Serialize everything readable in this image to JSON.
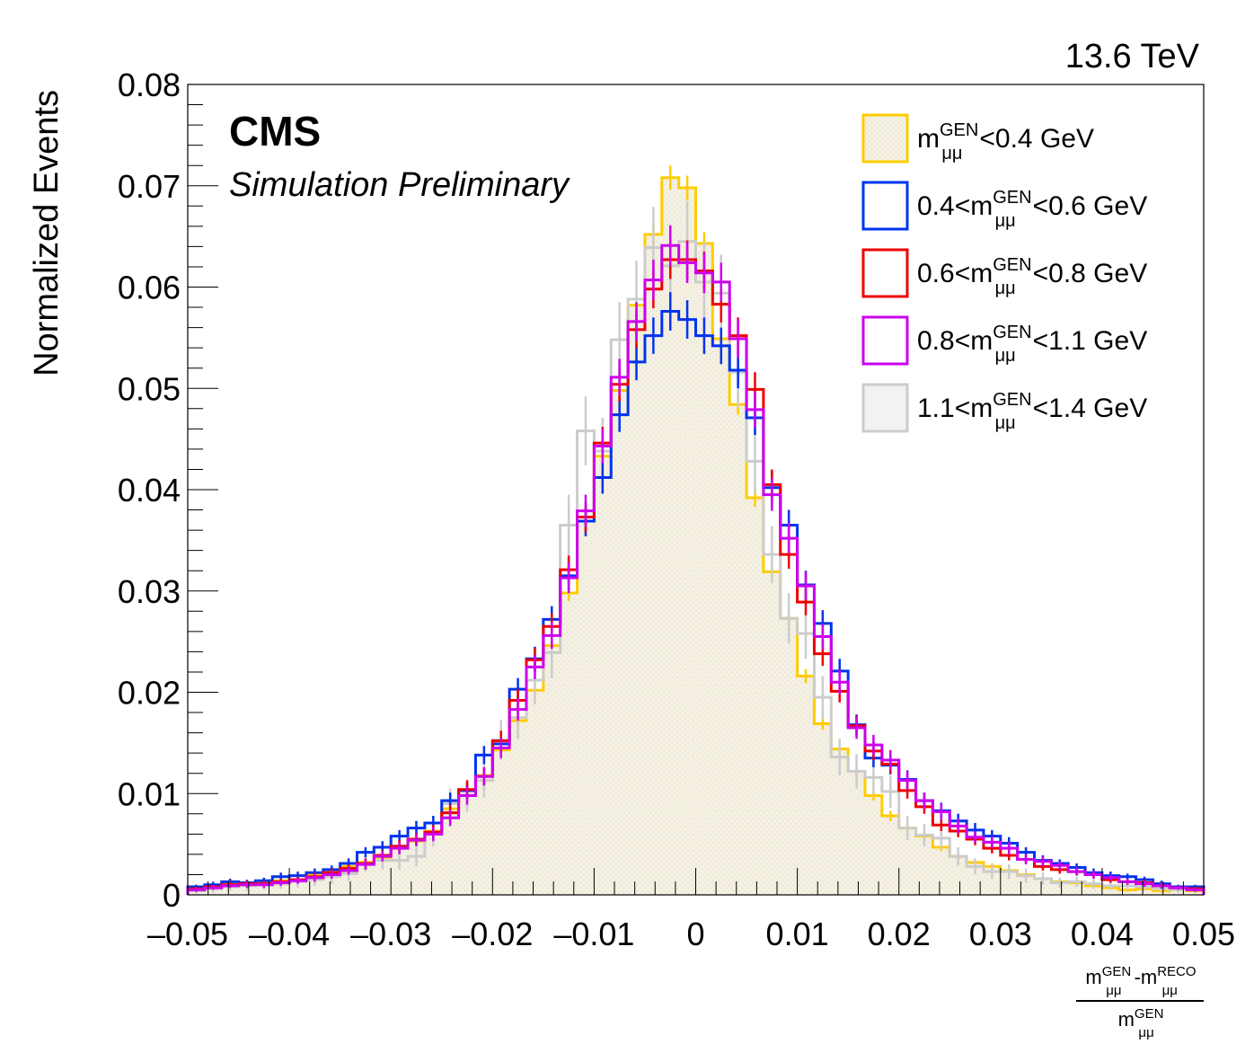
{
  "energy_label": "13.6 TeV",
  "experiment": "CMS",
  "status": "Simulation Preliminary",
  "chart_data": {
    "type": "histogram",
    "ylabel": "Normalized Events",
    "xlabel": {
      "num_a": "m",
      "num_a_sup": "GEN",
      "num_a_sub": "μμ",
      "minus": "-",
      "num_b": "m",
      "num_b_sup": "RECO",
      "num_b_sub": "μμ",
      "den": "m",
      "den_sup": "GEN",
      "den_sub": "μμ"
    },
    "xlim": [
      -0.05,
      0.05
    ],
    "ylim": [
      0,
      0.08
    ],
    "x_ticks": [
      {
        "value": -0.05,
        "label": "–0.05"
      },
      {
        "value": -0.04,
        "label": "–0.04"
      },
      {
        "value": -0.03,
        "label": "–0.03"
      },
      {
        "value": -0.02,
        "label": "–0.02"
      },
      {
        "value": -0.01,
        "label": "–0.01"
      },
      {
        "value": 0,
        "label": "0"
      },
      {
        "value": 0.01,
        "label": "0.01"
      },
      {
        "value": 0.02,
        "label": "0.02"
      },
      {
        "value": 0.03,
        "label": "0.03"
      },
      {
        "value": 0.04,
        "label": "0.04"
      },
      {
        "value": 0.05,
        "label": "0.05"
      }
    ],
    "y_ticks": [
      {
        "value": 0,
        "label": "0"
      },
      {
        "value": 0.01,
        "label": "0.01"
      },
      {
        "value": 0.02,
        "label": "0.02"
      },
      {
        "value": 0.03,
        "label": "0.03"
      },
      {
        "value": 0.04,
        "label": "0.04"
      },
      {
        "value": 0.05,
        "label": "0.05"
      },
      {
        "value": 0.06,
        "label": "0.06"
      },
      {
        "value": 0.07,
        "label": "0.07"
      },
      {
        "value": 0.08,
        "label": "0.08"
      }
    ],
    "bins": {
      "low": -0.05,
      "high": 0.05,
      "count": 60
    },
    "series": [
      {
        "label_pre": "",
        "label_post": "<0.4 GeV",
        "color": "#ffcc00",
        "fill": "#f4f0e4",
        "filled": true,
        "err_color": "#ffcc00",
        "values": [
          0.0007,
          0.0009,
          0.0012,
          0.0011,
          0.0012,
          0.0014,
          0.0015,
          0.002,
          0.0023,
          0.0028,
          0.0032,
          0.0037,
          0.0048,
          0.0053,
          0.0063,
          0.0085,
          0.0103,
          0.0118,
          0.0143,
          0.0172,
          0.0202,
          0.0246,
          0.0298,
          0.0369,
          0.0433,
          0.0498,
          0.0582,
          0.0652,
          0.0708,
          0.0698,
          0.0643,
          0.0549,
          0.0484,
          0.0392,
          0.0319,
          0.0273,
          0.0216,
          0.0169,
          0.0144,
          0.0122,
          0.0098,
          0.0078,
          0.0066,
          0.0058,
          0.0047,
          0.0038,
          0.0032,
          0.0028,
          0.0024,
          0.002,
          0.0016,
          0.0013,
          0.0012,
          0.0009,
          0.0007,
          0.0005,
          0.0006,
          0.0004,
          0.0005,
          0.0004
        ],
        "errors": [
          0.0002,
          0.0002,
          0.0002,
          0.0002,
          0.0002,
          0.0002,
          0.0002,
          0.0003,
          0.0003,
          0.0003,
          0.0003,
          0.0004,
          0.0004,
          0.0004,
          0.0004,
          0.0005,
          0.0005,
          0.0006,
          0.0006,
          0.0006,
          0.0007,
          0.0007,
          0.0008,
          0.0009,
          0.001,
          0.001,
          0.0011,
          0.0011,
          0.0012,
          0.0012,
          0.0011,
          0.001,
          0.001,
          0.0009,
          0.0008,
          0.0008,
          0.0007,
          0.0006,
          0.0006,
          0.0005,
          0.0005,
          0.0005,
          0.0004,
          0.0004,
          0.0004,
          0.0003,
          0.0003,
          0.0003,
          0.0003,
          0.0003,
          0.0002,
          0.0002,
          0.0002,
          0.0002,
          0.0002,
          0.0002,
          0.0002,
          0.0002,
          0.0002,
          0.0002
        ]
      },
      {
        "label_pre": "0.4<",
        "label_post": "<0.6 GeV",
        "color": "#0033ee",
        "fill": "none",
        "filled": false,
        "err_color": "#0033ee",
        "values": [
          0.0008,
          0.001,
          0.0013,
          0.0012,
          0.0014,
          0.0018,
          0.0019,
          0.0022,
          0.0025,
          0.0031,
          0.0042,
          0.0047,
          0.0058,
          0.0066,
          0.0071,
          0.0093,
          0.0103,
          0.0138,
          0.0149,
          0.0203,
          0.0233,
          0.0272,
          0.0315,
          0.0369,
          0.0412,
          0.0474,
          0.0526,
          0.0552,
          0.0576,
          0.0568,
          0.0552,
          0.0542,
          0.0518,
          0.0471,
          0.0402,
          0.0365,
          0.0306,
          0.0268,
          0.0221,
          0.0168,
          0.0135,
          0.0128,
          0.0114,
          0.0093,
          0.0083,
          0.0073,
          0.0064,
          0.0058,
          0.0051,
          0.0042,
          0.0034,
          0.0031,
          0.0027,
          0.0022,
          0.0019,
          0.0018,
          0.0015,
          0.0011,
          0.0008,
          0.0008
        ],
        "errors": [
          0.0002,
          0.0003,
          0.0003,
          0.0003,
          0.0003,
          0.0004,
          0.0004,
          0.0004,
          0.0004,
          0.0005,
          0.0005,
          0.0006,
          0.0006,
          0.0007,
          0.0007,
          0.0008,
          0.0008,
          0.0009,
          0.001,
          0.0011,
          0.0012,
          0.0013,
          0.0014,
          0.0015,
          0.0016,
          0.0017,
          0.0018,
          0.0018,
          0.0019,
          0.0019,
          0.0018,
          0.0018,
          0.0018,
          0.0017,
          0.0016,
          0.0015,
          0.0014,
          0.0013,
          0.0012,
          0.001,
          0.0009,
          0.0009,
          0.0009,
          0.0008,
          0.0008,
          0.0007,
          0.0007,
          0.0006,
          0.0006,
          0.0005,
          0.0005,
          0.0004,
          0.0004,
          0.0004,
          0.0004,
          0.0003,
          0.0003,
          0.0003,
          0.0002,
          0.0002
        ]
      },
      {
        "label_pre": "0.6<",
        "label_post": "<0.8 GeV",
        "color": "#ee0000",
        "fill": "none",
        "filled": false,
        "err_color": "#ee0000",
        "values": [
          0.0006,
          0.0008,
          0.001,
          0.0011,
          0.0011,
          0.0013,
          0.0015,
          0.0018,
          0.0022,
          0.0026,
          0.0031,
          0.0039,
          0.0048,
          0.0055,
          0.0062,
          0.0081,
          0.0104,
          0.0117,
          0.0152,
          0.0192,
          0.0232,
          0.0265,
          0.0321,
          0.0373,
          0.0446,
          0.0504,
          0.0558,
          0.0598,
          0.0627,
          0.0627,
          0.0616,
          0.0583,
          0.0552,
          0.0499,
          0.0405,
          0.0336,
          0.0289,
          0.0238,
          0.0201,
          0.0167,
          0.0142,
          0.0129,
          0.0103,
          0.0087,
          0.0069,
          0.0063,
          0.0055,
          0.0046,
          0.0039,
          0.0035,
          0.0028,
          0.0025,
          0.0023,
          0.002,
          0.0015,
          0.0013,
          0.0012,
          0.0009,
          0.0007,
          0.0006
        ],
        "errors": [
          0.0002,
          0.0002,
          0.0003,
          0.0003,
          0.0003,
          0.0003,
          0.0003,
          0.0004,
          0.0004,
          0.0004,
          0.0005,
          0.0005,
          0.0006,
          0.0006,
          0.0007,
          0.0008,
          0.0009,
          0.0009,
          0.001,
          0.0011,
          0.0012,
          0.0013,
          0.0014,
          0.0015,
          0.0016,
          0.0017,
          0.0018,
          0.0019,
          0.0019,
          0.0019,
          0.0019,
          0.0018,
          0.0018,
          0.0017,
          0.0015,
          0.0014,
          0.0013,
          0.0012,
          0.0011,
          0.001,
          0.0009,
          0.0009,
          0.0008,
          0.0007,
          0.0006,
          0.0006,
          0.0006,
          0.0005,
          0.0005,
          0.0004,
          0.0004,
          0.0004,
          0.0003,
          0.0003,
          0.0003,
          0.0003,
          0.0003,
          0.0002,
          0.0002,
          0.0002
        ]
      },
      {
        "label_pre": "0.8<",
        "label_post": "<1.1 GeV",
        "color": "#cc00ee",
        "fill": "none",
        "filled": false,
        "err_color": "#cc00ee",
        "values": [
          0.0005,
          0.0007,
          0.0009,
          0.001,
          0.001,
          0.0012,
          0.0014,
          0.0017,
          0.002,
          0.0024,
          0.003,
          0.0038,
          0.0046,
          0.0054,
          0.006,
          0.0076,
          0.0098,
          0.0117,
          0.0145,
          0.0183,
          0.0225,
          0.0256,
          0.0313,
          0.0379,
          0.0443,
          0.0511,
          0.0566,
          0.0607,
          0.0641,
          0.0624,
          0.0614,
          0.0605,
          0.0549,
          0.0479,
          0.0395,
          0.0352,
          0.0305,
          0.0255,
          0.021,
          0.0165,
          0.0148,
          0.0133,
          0.0113,
          0.0093,
          0.0082,
          0.0068,
          0.0057,
          0.0052,
          0.0046,
          0.0035,
          0.0033,
          0.0029,
          0.0023,
          0.002,
          0.0017,
          0.0013,
          0.0011,
          0.0009,
          0.0007,
          0.0005
        ],
        "errors": [
          0.0002,
          0.0002,
          0.0002,
          0.0003,
          0.0003,
          0.0003,
          0.0003,
          0.0004,
          0.0004,
          0.0004,
          0.0005,
          0.0005,
          0.0006,
          0.0006,
          0.0007,
          0.0008,
          0.0009,
          0.0009,
          0.001,
          0.0011,
          0.0012,
          0.0013,
          0.0015,
          0.0016,
          0.0017,
          0.0018,
          0.0019,
          0.002,
          0.002,
          0.002,
          0.002,
          0.0019,
          0.0019,
          0.0018,
          0.0016,
          0.0015,
          0.0014,
          0.0013,
          0.0012,
          0.0011,
          0.001,
          0.001,
          0.0009,
          0.0008,
          0.0008,
          0.0007,
          0.0006,
          0.0006,
          0.0006,
          0.0005,
          0.0005,
          0.0004,
          0.0004,
          0.0004,
          0.0003,
          0.0003,
          0.0003,
          0.0003,
          0.0002,
          0.0002
        ]
      },
      {
        "label_pre": "1.1<",
        "label_post": "<1.4 GeV",
        "color": "#cccccc",
        "fill": "#f2f2f2",
        "filled": false,
        "err_color": "#cccccc",
        "values": [
          0.0004,
          0.0006,
          0.0008,
          0.0009,
          0.001,
          0.0011,
          0.0013,
          0.0015,
          0.0018,
          0.0021,
          0.0031,
          0.0034,
          0.0034,
          0.0038,
          0.006,
          0.009,
          0.0098,
          0.0113,
          0.0153,
          0.0175,
          0.0212,
          0.0239,
          0.0365,
          0.0458,
          0.0438,
          0.0548,
          0.0588,
          0.0639,
          0.0621,
          0.0645,
          0.0605,
          0.0594,
          0.0516,
          0.0428,
          0.0336,
          0.0273,
          0.0258,
          0.0195,
          0.0136,
          0.0122,
          0.0116,
          0.0102,
          0.0066,
          0.0059,
          0.0056,
          0.0038,
          0.0028,
          0.0023,
          0.0023,
          0.0019,
          0.0016,
          0.0012,
          0.0013,
          0.0011,
          0.0009,
          0.0009,
          0.0008,
          0.0006,
          0.0005,
          0.0005
        ],
        "errors": [
          0.0003,
          0.0004,
          0.0004,
          0.0005,
          0.0005,
          0.0005,
          0.0006,
          0.0006,
          0.0007,
          0.0007,
          0.0008,
          0.0009,
          0.0009,
          0.001,
          0.0012,
          0.0015,
          0.0016,
          0.0017,
          0.002,
          0.0021,
          0.0024,
          0.0025,
          0.003,
          0.0034,
          0.0033,
          0.0037,
          0.0038,
          0.004,
          0.0039,
          0.004,
          0.0039,
          0.0038,
          0.0035,
          0.0032,
          0.0028,
          0.0025,
          0.0025,
          0.0021,
          0.0018,
          0.0017,
          0.0017,
          0.0016,
          0.0012,
          0.0011,
          0.0011,
          0.0009,
          0.0008,
          0.0007,
          0.0007,
          0.0007,
          0.0006,
          0.0005,
          0.0005,
          0.0005,
          0.0004,
          0.0004,
          0.0004,
          0.0003,
          0.0003,
          0.0003
        ]
      }
    ],
    "legend": {
      "placement": "top-right",
      "symbol": "m",
      "symbol_sup": "GEN",
      "symbol_sub": "μμ"
    }
  }
}
